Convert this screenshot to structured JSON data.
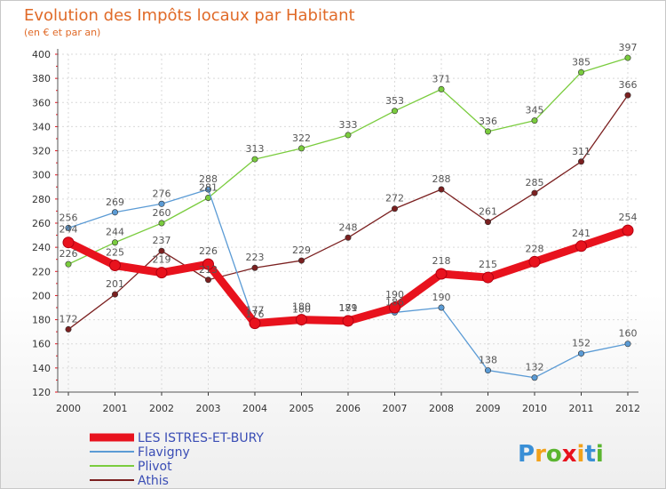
{
  "chart_data": {
    "type": "line",
    "title": "Evolution des Impôts locaux par Habitant",
    "subtitle": "(en € et par an)",
    "x": [
      "2000",
      "2001",
      "2002",
      "2003",
      "2004",
      "2005",
      "2006",
      "2007",
      "2008",
      "2009",
      "2010",
      "2011",
      "2012"
    ],
    "ylim": [
      120,
      400
    ],
    "yticks": [
      "120",
      "140",
      "160",
      "180",
      "200",
      "220",
      "240",
      "260",
      "280",
      "300",
      "320",
      "340",
      "360",
      "380",
      "400"
    ],
    "grid": true,
    "legend_position": "bottom-left",
    "series": [
      {
        "name": "Athis",
        "color": "#7b2020",
        "values": [
          172,
          201,
          237,
          213,
          223,
          229,
          248,
          272,
          288,
          261,
          285,
          311,
          366
        ],
        "labels": [
          "172",
          "201",
          "237",
          "213",
          "223",
          "229",
          "248",
          "272",
          "288",
          "261",
          "285",
          "311",
          "366"
        ]
      },
      {
        "name": "Plivot",
        "color": "#7acc3e",
        "values": [
          226,
          244,
          260,
          281,
          313,
          322,
          333,
          353,
          371,
          336,
          345,
          385,
          397
        ],
        "labels": [
          "226",
          "244",
          "260",
          "281",
          "313",
          "322",
          "333",
          "353",
          "371",
          "336",
          "345",
          "385",
          "397"
        ]
      },
      {
        "name": "Flavigny",
        "color": "#5b9bd5",
        "values": [
          256,
          269,
          276,
          288,
          176,
          180,
          181,
          186,
          190,
          138,
          132,
          152,
          160
        ],
        "labels": [
          "256",
          "269",
          "276",
          "288",
          "176",
          "180",
          "181",
          "186",
          "190",
          "138",
          "132",
          "152",
          "160"
        ]
      },
      {
        "name": "LES ISTRES-ET-BURY",
        "color": "#e8121d",
        "values": [
          244,
          225,
          219,
          226,
          177,
          180,
          179,
          190,
          218,
          215,
          228,
          241,
          254
        ],
        "labels": [
          "244",
          "225",
          "219",
          "226",
          "177",
          "180",
          "179",
          "190",
          "218",
          "215",
          "228",
          "241",
          "254"
        ]
      }
    ]
  },
  "legend": {
    "items": [
      {
        "name": "LES ISTRES-ET-BURY",
        "color": "#e8121d"
      },
      {
        "name": "Flavigny",
        "color": "#5b9bd5"
      },
      {
        "name": "Plivot",
        "color": "#7acc3e"
      },
      {
        "name": "Athis",
        "color": "#7b2020"
      }
    ]
  },
  "logo": {
    "letters": [
      "P",
      "r",
      "o",
      "x",
      "i",
      "t",
      "i"
    ],
    "colors": [
      "#3a8fd6",
      "#f2a21b",
      "#5bb531",
      "#e8121d",
      "#f2a21b",
      "#3a8fd6",
      "#5bb531"
    ]
  }
}
